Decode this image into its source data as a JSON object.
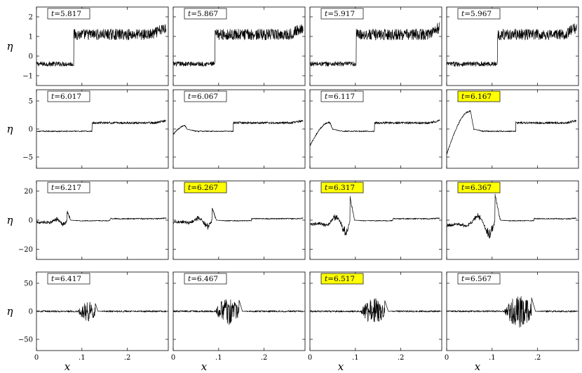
{
  "chart_data": {
    "type": "line",
    "xlabel": "x",
    "ylabel": "η",
    "layout": "4x4 grid",
    "highlight_color": "#ffff00",
    "x_tick_labels": [
      "0",
      ".1",
      ".2"
    ],
    "x_ticks": [
      0,
      0.1,
      0.2
    ],
    "xlim": [
      0,
      0.29
    ],
    "rows": [
      {
        "ylim": [
          -1.5,
          2.5
        ],
        "y_ticks": [
          -1,
          0,
          1,
          2
        ],
        "y_tick_labels": [
          "−1",
          "0",
          "1",
          "2"
        ]
      },
      {
        "ylim": [
          -7,
          7
        ],
        "y_ticks": [
          -5,
          0,
          5
        ],
        "y_tick_labels": [
          "−5",
          "0",
          "5"
        ]
      },
      {
        "ylim": [
          -27,
          27
        ],
        "y_ticks": [
          -20,
          0,
          20
        ],
        "y_tick_labels": [
          "−20",
          "0",
          "20"
        ]
      },
      {
        "ylim": [
          -70,
          70
        ],
        "y_ticks": [
          -50,
          0,
          50
        ],
        "y_tick_labels": [
          "−50",
          "0",
          "50"
        ]
      }
    ],
    "panels": [
      {
        "t": "5.817",
        "highlight": false,
        "series": {
          "pre": [
            0.0,
            0.082,
            -0.4
          ],
          "post": [
            0.082,
            0.285,
            1.1,
            1.45
          ],
          "noise_pre": 0.12,
          "noise_post": 0.28,
          "wave": null
        }
      },
      {
        "t": "5.867",
        "highlight": false,
        "series": {
          "pre": [
            0.0,
            0.092,
            -0.4
          ],
          "post": [
            0.092,
            0.285,
            1.1,
            1.45
          ],
          "noise_pre": 0.12,
          "noise_post": 0.28,
          "wave": null
        }
      },
      {
        "t": "5.917",
        "highlight": false,
        "series": {
          "pre": [
            0.0,
            0.102,
            -0.4
          ],
          "post": [
            0.102,
            0.285,
            1.1,
            1.45
          ],
          "noise_pre": 0.12,
          "noise_post": 0.28,
          "wave": null
        }
      },
      {
        "t": "5.967",
        "highlight": false,
        "series": {
          "pre": [
            0.0,
            0.112,
            -0.4
          ],
          "post": [
            0.112,
            0.285,
            1.1,
            1.45
          ],
          "noise_pre": 0.12,
          "noise_post": 0.28,
          "wave": null
        }
      },
      {
        "t": "6.017",
        "highlight": false,
        "series": {
          "pre": [
            0.0,
            0.122,
            -0.4
          ],
          "post": [
            0.122,
            0.285,
            1.1,
            1.5
          ],
          "noise_pre": 0.1,
          "noise_post": 0.2,
          "wave": null
        }
      },
      {
        "t": "6.067",
        "highlight": false,
        "series": {
          "pre": [
            0.0,
            0.132,
            -0.4
          ],
          "post": [
            0.132,
            0.285,
            1.1,
            1.5
          ],
          "noise_pre": 0.1,
          "noise_post": 0.2,
          "wave": [
            0.0,
            0.03,
            -1.0,
            0.6
          ]
        }
      },
      {
        "t": "6.117",
        "highlight": false,
        "series": {
          "pre": [
            0.0,
            0.142,
            -0.4
          ],
          "post": [
            0.142,
            0.285,
            1.1,
            1.5
          ],
          "noise_pre": 0.1,
          "noise_post": 0.2,
          "wave": [
            0.0,
            0.05,
            -3.0,
            1.2
          ]
        }
      },
      {
        "t": "6.167",
        "highlight": true,
        "series": {
          "pre": [
            0.0,
            0.152,
            -0.4
          ],
          "post": [
            0.152,
            0.285,
            1.1,
            1.5
          ],
          "noise_pre": 0.1,
          "noise_post": 0.2,
          "wave": [
            0.0,
            0.06,
            -4.5,
            3.2
          ]
        }
      },
      {
        "t": "6.217",
        "highlight": false,
        "series": {
          "pre": [
            0.0,
            0.162,
            -0.4
          ],
          "post": [
            0.162,
            0.285,
            1.0,
            1.4
          ],
          "noise_pre": 0.3,
          "noise_post": 0.4,
          "wave": [
            0.0,
            0.075,
            -6.0,
            6.0
          ]
        }
      },
      {
        "t": "6.267",
        "highlight": true,
        "series": {
          "pre": [
            0.0,
            0.172,
            -0.4
          ],
          "post": [
            0.172,
            0.285,
            1.0,
            1.4
          ],
          "noise_pre": 0.3,
          "noise_post": 0.4,
          "wave": [
            0.0,
            0.095,
            -5.0,
            9.0
          ]
        }
      },
      {
        "t": "6.317",
        "highlight": true,
        "series": {
          "pre": [
            0.0,
            0.182,
            -0.4
          ],
          "post": [
            0.182,
            0.285,
            1.0,
            1.4
          ],
          "noise_pre": 0.3,
          "noise_post": 0.4,
          "wave": [
            0.0,
            0.098,
            -10.0,
            16.0
          ]
        }
      },
      {
        "t": "6.367",
        "highlight": true,
        "series": {
          "pre": [
            0.0,
            0.192,
            -0.4
          ],
          "post": [
            0.192,
            0.285,
            1.0,
            1.4
          ],
          "noise_pre": 0.3,
          "noise_post": 0.4,
          "wave": [
            0.0,
            0.118,
            -12.0,
            18.0
          ]
        }
      },
      {
        "t": "6.417",
        "highlight": false,
        "series": {
          "pre": [
            0.0,
            0.29,
            0.0
          ],
          "post": null,
          "noise_pre": 1.5,
          "noise_post": 0.0,
          "wave": [
            0.09,
            0.135,
            -22.0,
            20.0
          ]
        }
      },
      {
        "t": "6.467",
        "highlight": false,
        "series": {
          "pre": [
            0.0,
            0.29,
            0.0
          ],
          "post": null,
          "noise_pre": 1.5,
          "noise_post": 0.0,
          "wave": [
            0.09,
            0.152,
            -27.0,
            30.0
          ]
        }
      },
      {
        "t": "6.517",
        "highlight": true,
        "series": {
          "pre": [
            0.0,
            0.29,
            0.0
          ],
          "post": null,
          "noise_pre": 1.5,
          "noise_post": 0.0,
          "wave": [
            0.11,
            0.172,
            -28.0,
            28.0
          ]
        }
      },
      {
        "t": "6.567",
        "highlight": false,
        "series": {
          "pre": [
            0.0,
            0.29,
            0.0
          ],
          "post": null,
          "noise_pre": 1.5,
          "noise_post": 0.0,
          "wave": [
            0.125,
            0.195,
            -35.0,
            35.0
          ]
        }
      }
    ]
  }
}
